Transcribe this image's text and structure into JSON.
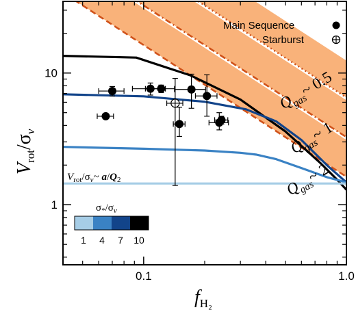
{
  "chart_data": {
    "type": "scatter",
    "title": "",
    "xlabel": "f",
    "xlabel_sub": "H₂",
    "ylabel": "V",
    "ylabel_sub": "rot",
    "ylabel_tail": "/σ",
    "ylabel_nu": "ν",
    "xscale": "log",
    "yscale": "log",
    "xlim": [
      0.04,
      1.0
    ],
    "ylim": [
      0.35,
      35
    ],
    "x_ticks": [
      {
        "value": 0.1,
        "label": "0.1"
      },
      {
        "value": 1.0,
        "label": "1.0"
      }
    ],
    "y_ticks": [
      {
        "value": 1,
        "label": "1"
      },
      {
        "value": 10,
        "label": "10"
      }
    ],
    "grid": false,
    "legend_position": "top-right",
    "legend": [
      {
        "label": "Main Sequence",
        "marker": "filled-circle"
      },
      {
        "label": "Starburst",
        "marker": "circle-plus"
      }
    ],
    "bands": [
      {
        "q": 0.5,
        "label_pre": "Q",
        "label_sub": "gas",
        "label_post": "~ 0.5",
        "lower_style": "dotted",
        "log_half_width": 0.14
      },
      {
        "q": 1,
        "label_pre": "Q",
        "label_sub": "gas",
        "label_post": "~ 1",
        "lower_style": "dash-dot",
        "log_half_width": 0.14
      },
      {
        "q": 2,
        "label_pre": "Q",
        "label_sub": "gas",
        "label_post": "~ 2",
        "lower_style": "dashed",
        "log_half_width": 0.14
      }
    ],
    "band_color": "#f9b27a",
    "band_line_color": "#d0521a",
    "band_constant": 4.5,
    "model_lines": [
      {
        "sigma_ratio": 10,
        "color": "#000000",
        "points": [
          [
            0.04,
            13.5
          ],
          [
            0.092,
            13.1
          ],
          [
            0.17,
            9.6
          ],
          [
            0.3,
            6.3
          ],
          [
            0.5,
            3.6
          ],
          [
            0.75,
            2.05
          ],
          [
            0.9,
            1.55
          ],
          [
            1.0,
            1.3
          ]
        ]
      },
      {
        "sigma_ratio": 7,
        "color": "#12448a",
        "points": [
          [
            0.04,
            6.9
          ],
          [
            0.1,
            6.65
          ],
          [
            0.2,
            6.05
          ],
          [
            0.32,
            5.3
          ],
          [
            0.45,
            4.3
          ],
          [
            0.6,
            3.1
          ],
          [
            0.8,
            2.0
          ],
          [
            1.0,
            1.48
          ]
        ]
      },
      {
        "sigma_ratio": 4,
        "color": "#3a82c4",
        "points": [
          [
            0.04,
            2.75
          ],
          [
            0.1,
            2.66
          ],
          [
            0.2,
            2.58
          ],
          [
            0.3,
            2.48
          ],
          [
            0.36,
            2.4
          ],
          [
            0.45,
            2.22
          ],
          [
            0.6,
            1.9
          ],
          [
            0.8,
            1.62
          ],
          [
            1.0,
            1.48
          ]
        ]
      },
      {
        "sigma_ratio": 1,
        "color": "#a6cde6",
        "points": [
          [
            0.04,
            1.45
          ],
          [
            1.0,
            1.45
          ]
        ]
      }
    ],
    "points_main_sequence": [
      {
        "x": 0.065,
        "y": 4.7,
        "xerr": [
          0.006,
          0.006
        ],
        "yerr": [
          0,
          0
        ]
      },
      {
        "x": 0.07,
        "y": 7.3,
        "xerr": [
          0.01,
          0.01
        ],
        "yerr": [
          0.6,
          0.6
        ]
      },
      {
        "x": 0.108,
        "y": 7.6,
        "xerr": [
          0.02,
          0.02
        ],
        "yerr": [
          0.8,
          0.8
        ]
      },
      {
        "x": 0.122,
        "y": 7.6,
        "xerr": [
          0.02,
          0.02
        ],
        "yerr": [
          0.5,
          0.5
        ]
      },
      {
        "x": 0.15,
        "y": 4.1,
        "xerr": [
          0.01,
          0.01
        ],
        "yerr": [
          0.8,
          1.4
        ]
      },
      {
        "x": 0.172,
        "y": 7.5,
        "xerr": [
          0.03,
          0.03
        ],
        "yerr": [
          2.1,
          2.3
        ]
      },
      {
        "x": 0.205,
        "y": 6.7,
        "xerr": [
          0.025,
          0.025
        ],
        "yerr": [
          2.0,
          3.0
        ]
      },
      {
        "x": 0.236,
        "y": 4.2,
        "xerr": [
          0.026,
          0.026
        ],
        "yerr": [
          0.5,
          0.8
        ]
      },
      {
        "x": 0.242,
        "y": 4.4,
        "xerr": [
          0.018,
          0.018
        ],
        "yerr": [
          0.3,
          0.3
        ]
      }
    ],
    "points_starburst": [
      {
        "x": 0.143,
        "y": 5.9,
        "xerr": [
          0.013,
          0.013
        ],
        "yerr": [
          4.5,
          3.2
        ]
      }
    ],
    "annotation": {
      "pre": "V",
      "sub": "rot",
      "mid": "/σ",
      "nu": "ν",
      "post": "~ ",
      "a": "a",
      "slash": "/",
      "q": "Q",
      "qsub": "2"
    },
    "colorbar": {
      "title_pre": "σ",
      "title_sub": "*",
      "title_mid": "/σ",
      "title_nu": "ν",
      "ticks": [
        "1",
        "4",
        "7",
        "10"
      ],
      "colors": [
        "#a6cde6",
        "#3a82c4",
        "#12448a",
        "#000000"
      ]
    }
  }
}
